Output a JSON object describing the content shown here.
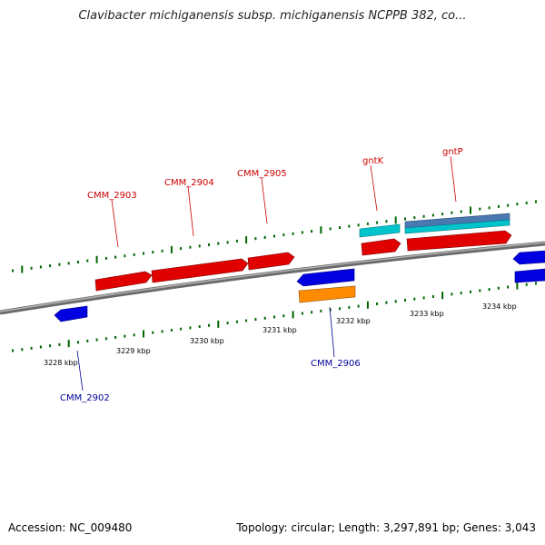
{
  "title": "Clavibacter michiganensis subsp. michiganensis NCPPB 382, co...",
  "footer": {
    "accession": "Accession: NC_009480",
    "summary": "Topology: circular; Length: 3,297,891 bp; Genes: 3,043"
  },
  "colors": {
    "forward_gene": "#ff0000",
    "reverse_gene": "#0000ff",
    "orange_feature": "#ff8c00",
    "cyan_feature": "#00c0c8",
    "steel_feature": "#4a78b0",
    "forward_label": "#cc0000",
    "reverse_label": "#000099",
    "tick": "#006600",
    "backbone": "#808080"
  },
  "scale_labels": [
    "3228 kbp",
    "3229 kbp",
    "3230 kbp",
    "3231 kbp",
    "3232 kbp",
    "3233 kbp",
    "3234 kbp"
  ],
  "gene_labels": [
    {
      "text": "CMM_2902",
      "strand": "reverse"
    },
    {
      "text": "CMM_2903",
      "strand": "forward"
    },
    {
      "text": "CMM_2904",
      "strand": "forward"
    },
    {
      "text": "CMM_2905",
      "strand": "forward"
    },
    {
      "text": "CMM_2906",
      "strand": "reverse"
    },
    {
      "text": "gntK",
      "strand": "forward"
    },
    {
      "text": "gntP",
      "strand": "forward"
    }
  ]
}
